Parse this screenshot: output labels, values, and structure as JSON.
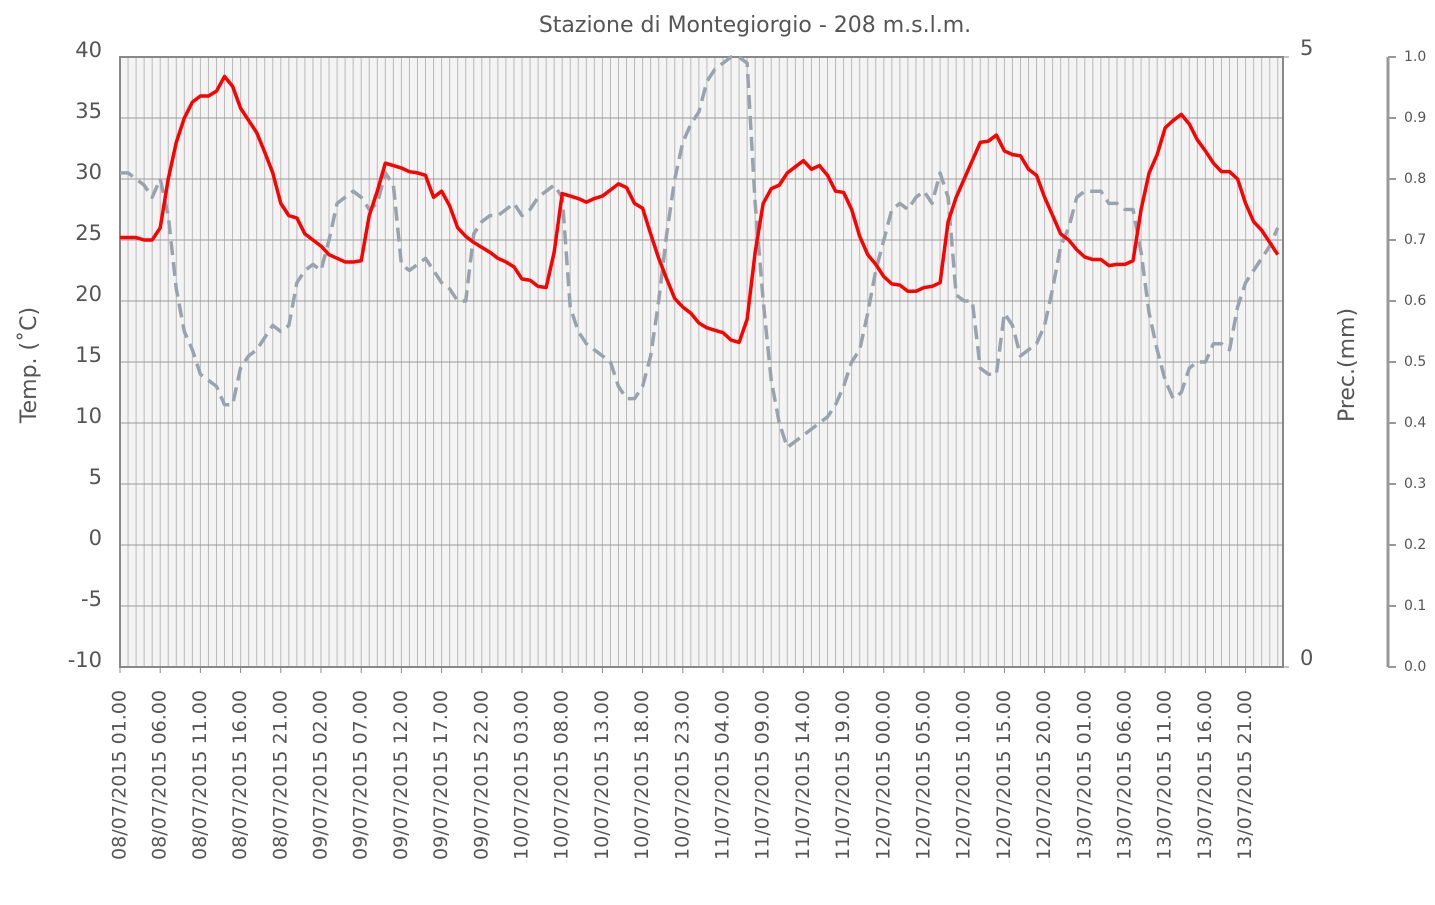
{
  "chart_data": {
    "type": "line",
    "title": "Stazione di Montegiorgio - 208 m.s.l.m.",
    "ylabel": "Temp. (˚C)",
    "y2label": "Prec.(mm)",
    "categories": [
      "08/07/2015 01.00",
      null,
      null,
      null,
      null,
      "08/07/2015 06.00",
      null,
      null,
      null,
      null,
      "08/07/2015 11.00",
      null,
      null,
      null,
      null,
      "08/07/2015 16.00",
      null,
      null,
      null,
      null,
      "08/07/2015 21.00",
      null,
      null,
      null,
      null,
      "09/07/2015 02.00",
      null,
      null,
      null,
      null,
      "09/07/2015 07.00",
      null,
      null,
      null,
      null,
      "09/07/2015 12.00",
      null,
      null,
      null,
      null,
      "09/07/2015 17.00",
      null,
      null,
      null,
      null,
      "09/07/2015 22.00",
      null,
      null,
      null,
      null,
      "10/07/2015 03.00",
      null,
      null,
      null,
      null,
      "10/07/2015 08.00",
      null,
      null,
      null,
      null,
      "10/07/2015 13.00",
      null,
      null,
      null,
      null,
      "10/07/2015 18.00",
      null,
      null,
      null,
      null,
      "10/07/2015 23.00",
      null,
      null,
      null,
      null,
      "11/07/2015 04.00",
      null,
      null,
      null,
      null,
      "11/07/2015 09.00",
      null,
      null,
      null,
      null,
      "11/07/2015 14.00",
      null,
      null,
      null,
      null,
      "11/07/2015 19.00",
      null,
      null,
      null,
      null,
      "12/07/2015 00.00",
      null,
      null,
      null,
      null,
      "12/07/2015 05.00",
      null,
      null,
      null,
      null,
      "12/07/2015 10.00",
      null,
      null,
      null,
      null,
      "12/07/2015 15.00",
      null,
      null,
      null,
      null,
      "12/07/2015 20.00",
      null,
      null,
      null,
      null,
      "13/07/2015 01.00",
      null,
      null,
      null,
      null,
      "13/07/2015 06.00",
      null,
      null,
      null,
      null,
      "13/07/2015 11.00",
      null,
      null,
      null,
      null,
      "13/07/2015 16.00",
      null,
      null,
      null,
      null,
      "13/07/2015 21.00",
      null,
      null,
      null,
      null
    ],
    "series": [
      {
        "color": "#ff0000",
        "values": [
          25.2,
          25.2,
          25.2,
          25,
          25,
          26,
          30,
          33,
          35,
          36.3,
          36.8,
          36.8,
          37.2,
          38.4,
          37.6,
          35.8,
          34.8,
          33.8,
          32.2,
          30.5,
          28,
          27,
          26.8,
          25.5,
          25,
          24.5,
          23.8,
          23.5,
          23.2,
          23.2,
          23.3,
          27,
          29,
          31.3,
          31.1,
          30.9,
          30.6,
          30.5,
          30.3,
          28.5,
          29,
          27.8,
          26,
          25.3,
          24.8,
          24.4,
          24,
          23.5,
          23.2,
          22.8,
          21.8,
          21.7,
          21.2,
          21.1,
          24,
          28.8,
          28.6,
          28.4,
          28.1,
          28.4,
          28.6,
          29.1,
          29.6,
          29.3,
          28,
          27.6,
          25.5,
          23.5,
          21.8,
          20.2,
          19.5,
          19,
          18.2,
          17.8,
          17.6,
          17.4,
          16.8,
          16.6,
          18.5,
          24,
          28,
          29.2,
          29.5,
          30.5,
          31,
          31.5,
          30.8,
          31.1,
          30.3,
          29,
          28.9,
          27.5,
          25.3,
          23.8,
          23,
          22,
          21.4,
          21.3,
          20.8,
          20.8,
          21.1,
          21.2,
          21.5,
          26.5,
          28.5,
          30,
          31.5,
          33,
          33.1,
          33.6,
          32.3,
          32,
          31.9,
          30.8,
          30.3,
          28.5,
          27,
          25.5,
          25,
          24.2,
          23.6,
          23.4,
          23.4,
          22.9,
          23,
          23,
          23.3,
          27.5,
          30.5,
          32,
          34.2,
          34.8,
          35.3,
          34.5,
          33.2,
          32.3,
          31.3,
          30.6,
          30.6,
          30,
          28,
          26.5,
          25.8,
          24.8,
          23.8
        ]
      },
      {
        "color": "#9aa3ad",
        "axis": "y3",
        "dashed": true,
        "values": [
          0.81,
          0.81,
          0.8,
          0.79,
          0.77,
          0.8,
          0.74,
          0.62,
          0.55,
          0.52,
          0.48,
          0.47,
          0.46,
          0.43,
          0.43,
          0.49,
          0.51,
          0.52,
          0.54,
          0.56,
          0.55,
          0.56,
          0.63,
          0.65,
          0.66,
          0.65,
          0.7,
          0.76,
          0.77,
          0.78,
          0.77,
          0.75,
          0.76,
          0.81,
          0.79,
          0.66,
          0.65,
          0.66,
          0.67,
          0.65,
          0.63,
          0.62,
          0.6,
          0.6,
          0.71,
          0.73,
          0.74,
          0.74,
          0.75,
          0.76,
          0.74,
          0.75,
          0.77,
          0.78,
          0.79,
          0.77,
          0.59,
          0.55,
          0.53,
          0.52,
          0.51,
          0.5,
          0.46,
          0.44,
          0.44,
          0.46,
          0.51,
          0.6,
          0.71,
          0.8,
          0.86,
          0.89,
          0.91,
          0.96,
          0.98,
          0.99,
          1.0,
          1.0,
          0.99,
          0.76,
          0.6,
          0.47,
          0.4,
          0.36,
          0.37,
          0.38,
          0.39,
          0.4,
          0.41,
          0.43,
          0.46,
          0.5,
          0.52,
          0.58,
          0.65,
          0.7,
          0.75,
          0.76,
          0.75,
          0.77,
          0.78,
          0.76,
          0.81,
          0.77,
          0.61,
          0.6,
          0.6,
          0.49,
          0.48,
          0.48,
          0.58,
          0.56,
          0.51,
          0.52,
          0.53,
          0.56,
          0.62,
          0.69,
          0.72,
          0.77,
          0.78,
          0.78,
          0.78,
          0.76,
          0.76,
          0.75,
          0.75,
          0.68,
          0.58,
          0.52,
          0.47,
          0.44,
          0.45,
          0.49,
          0.5,
          0.5,
          0.53,
          0.53,
          0.52,
          0.59,
          0.63,
          0.65,
          0.67,
          0.69,
          0.72
        ]
      }
    ],
    "ylim": [
      -10,
      40
    ],
    "yticks": [
      -10,
      -5,
      0,
      5,
      10,
      15,
      20,
      25,
      30,
      35,
      40
    ],
    "y2lim": [
      0,
      5
    ],
    "y2ticks": [
      0,
      5
    ],
    "y3lim": [
      0,
      1
    ],
    "y3ticks": [
      {
        "value": 0,
        "label": "0.0"
      },
      0.1,
      0.2,
      0.3,
      0.4,
      0.5,
      0.6,
      0.7,
      0.8,
      0.9,
      {
        "value": 1,
        "label": "1.0"
      }
    ],
    "grid": true
  }
}
